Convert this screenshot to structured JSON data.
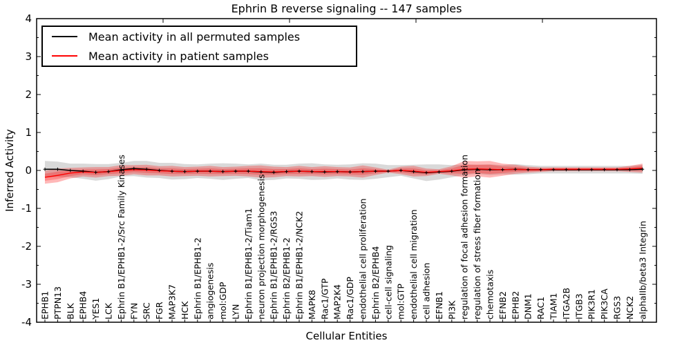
{
  "chart_data": {
    "type": "line",
    "title": "Ephrin B reverse signaling -- 147 samples",
    "xlabel": "Cellular Entities",
    "ylabel": "Inferred Activity",
    "ylim": [
      -4,
      4
    ],
    "yticks": [
      4,
      3,
      2,
      1,
      0,
      -1,
      -2,
      -3,
      -4
    ],
    "grid": false,
    "legend_position": "upper left",
    "categories": [
      "EPHB1",
      "PTPN13",
      "BLK",
      "EPHB4",
      "YES1",
      "LCK",
      "Ephrin B1/EPHB1-2/Src Family Kinases",
      "FYN",
      "SRC",
      "FGR",
      "MAP3K7",
      "HCK",
      "Ephrin B1/EPHB1-2",
      "angiogenesis",
      "mol:GDP",
      "LYN",
      "Ephrin B1/EPHB1-2/Tiam1",
      "neuron projection morphogenesis",
      "Ephrin B1/EPHB1-2/RGS3",
      "Ephrin B2/EPHB1-2",
      "Ephrin B1/EPHB1-2/NCK2",
      "MAPK8",
      "Rac1/GTP",
      "MAP2K4",
      "Rac1/GDP",
      "endothelial cell proliferation",
      "Ephrin B2/EPHB4",
      "cell-cell signaling",
      "mol:GTP",
      "endothelial cell migration",
      "cell adhesion",
      "EFNB1",
      "PI3K",
      "regulation of focal adhesion formation",
      "regulation of stress fiber formation",
      "chemotaxis",
      "EFNB2",
      "EPHB2",
      "DNM1",
      "RAC1",
      "TIAM1",
      "ITGA2B",
      "ITGB3",
      "PIK3R1",
      "PIK3CA",
      "RGS3",
      "NCK2",
      "alphaIIb/beta3 Integrin"
    ],
    "series": [
      {
        "name": "Mean activity in all permuted samples",
        "color": "#000000",
        "band_color": "#787878",
        "values": [
          0.03,
          0.03,
          0.0,
          -0.02,
          -0.05,
          -0.03,
          0.02,
          0.05,
          0.03,
          0.0,
          -0.02,
          -0.03,
          -0.02,
          -0.02,
          -0.03,
          -0.02,
          -0.02,
          -0.04,
          -0.05,
          -0.03,
          -0.02,
          -0.03,
          -0.04,
          -0.03,
          -0.04,
          -0.03,
          -0.02,
          -0.02,
          0.0,
          -0.03,
          -0.06,
          -0.04,
          -0.02,
          0.02,
          0.03,
          0.02,
          0.02,
          0.03,
          0.02,
          0.02,
          0.02,
          0.02,
          0.02,
          0.02,
          0.02,
          0.02,
          0.02,
          0.03
        ],
        "band_halfwidth": [
          0.22,
          0.2,
          0.18,
          0.2,
          0.22,
          0.2,
          0.18,
          0.2,
          0.22,
          0.2,
          0.22,
          0.2,
          0.18,
          0.2,
          0.22,
          0.2,
          0.18,
          0.22,
          0.2,
          0.18,
          0.2,
          0.22,
          0.2,
          0.18,
          0.2,
          0.22,
          0.2,
          0.16,
          0.14,
          0.18,
          0.22,
          0.2,
          0.16,
          0.14,
          0.12,
          0.14,
          0.12,
          0.14,
          0.12,
          0.1,
          0.1,
          0.1,
          0.1,
          0.1,
          0.1,
          0.1,
          0.1,
          0.12
        ]
      },
      {
        "name": "Mean activity in patient samples",
        "color": "#ff0000",
        "band_color": "#ff0000",
        "values": [
          -0.18,
          -0.13,
          -0.07,
          -0.04,
          -0.05,
          -0.03,
          0.0,
          0.02,
          0.01,
          -0.01,
          -0.02,
          -0.03,
          -0.02,
          -0.02,
          -0.03,
          -0.02,
          -0.02,
          -0.03,
          -0.04,
          -0.03,
          -0.02,
          -0.03,
          -0.03,
          -0.03,
          -0.04,
          -0.03,
          -0.02,
          -0.02,
          0.0,
          -0.02,
          -0.05,
          -0.03,
          -0.01,
          0.03,
          0.04,
          0.03,
          0.02,
          0.03,
          0.02,
          0.02,
          0.03,
          0.03,
          0.03,
          0.03,
          0.03,
          0.03,
          0.04,
          0.06
        ],
        "band_halfwidth": [
          0.17,
          0.18,
          0.14,
          0.12,
          0.14,
          0.12,
          0.14,
          0.12,
          0.14,
          0.12,
          0.14,
          0.12,
          0.12,
          0.14,
          0.12,
          0.12,
          0.14,
          0.16,
          0.14,
          0.12,
          0.14,
          0.12,
          0.14,
          0.12,
          0.12,
          0.16,
          0.1,
          0.04,
          0.1,
          0.14,
          0.1,
          0.06,
          0.12,
          0.22,
          0.2,
          0.22,
          0.16,
          0.12,
          0.08,
          0.06,
          0.05,
          0.05,
          0.05,
          0.05,
          0.05,
          0.05,
          0.08,
          0.12
        ]
      }
    ]
  }
}
